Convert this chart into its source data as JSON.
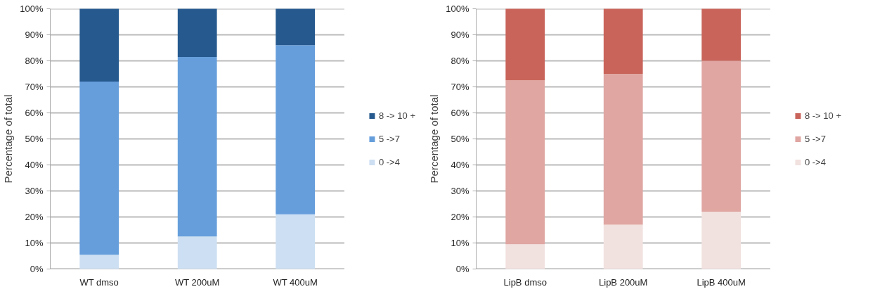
{
  "chart_data": [
    {
      "type": "bar",
      "stacked": true,
      "ylabel": "Percentage of total",
      "categories": [
        "WT dmso",
        "WT 200uM",
        "WT 400uM"
      ],
      "ylim": [
        0,
        100
      ],
      "yticks": [
        {
          "value": 0,
          "label": "0%"
        },
        {
          "value": 10,
          "label": "10%"
        },
        {
          "value": 20,
          "label": "20%"
        },
        {
          "value": 30,
          "label": "30%"
        },
        {
          "value": 40,
          "label": "40%"
        },
        {
          "value": 50,
          "label": "50%"
        },
        {
          "value": 60,
          "label": "60%"
        },
        {
          "value": 70,
          "label": "70%"
        },
        {
          "value": 80,
          "label": "80%"
        },
        {
          "value": 90,
          "label": "90%"
        },
        {
          "value": 100,
          "label": "100%"
        }
      ],
      "grid": "y",
      "legend": "right",
      "series": [
        {
          "name": "0 ->4",
          "color": "#cddff2",
          "values": [
            5.5,
            12.5,
            21
          ]
        },
        {
          "name": "5 ->7",
          "color": "#669edc",
          "values": [
            66.5,
            69,
            65
          ]
        },
        {
          "name": "8 -> 10 +",
          "color": "#265a8f",
          "values": [
            28,
            18.5,
            14
          ]
        }
      ]
    },
    {
      "type": "bar",
      "stacked": true,
      "ylabel": "Percentage of total",
      "categories": [
        "LipB dmso",
        "LipB 200uM",
        "LipB 400uM"
      ],
      "ylim": [
        0,
        100
      ],
      "yticks": [
        {
          "value": 0,
          "label": "0%"
        },
        {
          "value": 10,
          "label": "10%"
        },
        {
          "value": 20,
          "label": "20%"
        },
        {
          "value": 30,
          "label": "30%"
        },
        {
          "value": 40,
          "label": "40%"
        },
        {
          "value": 50,
          "label": "50%"
        },
        {
          "value": 60,
          "label": "60%"
        },
        {
          "value": 70,
          "label": "70%"
        },
        {
          "value": 80,
          "label": "80%"
        },
        {
          "value": 90,
          "label": "90%"
        },
        {
          "value": 100,
          "label": "100%"
        }
      ],
      "grid": "y",
      "legend": "right",
      "series": [
        {
          "name": "0 ->4",
          "color": "#f1e1df",
          "values": [
            9.5,
            17,
            22
          ]
        },
        {
          "name": "5 ->7",
          "color": "#dfa6a2",
          "values": [
            63,
            58,
            58
          ]
        },
        {
          "name": "8 -> 10 +",
          "color": "#c9645a",
          "values": [
            27.5,
            25,
            20
          ]
        }
      ]
    }
  ]
}
